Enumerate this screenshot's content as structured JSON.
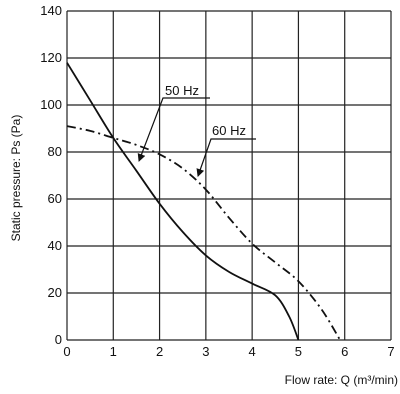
{
  "chart_data": {
    "type": "line",
    "xlabel": "Flow rate: Q (m³/min)",
    "ylabel": "Static pressure: Ps (Pa)",
    "xlim": [
      0,
      7
    ],
    "ylim": [
      0,
      140
    ],
    "x_ticks": [
      "0",
      "1",
      "2",
      "3",
      "4",
      "5",
      "6",
      "7"
    ],
    "y_ticks": [
      "0",
      "20",
      "40",
      "60",
      "80",
      "100",
      "120",
      "140"
    ],
    "grid": true,
    "series": [
      {
        "name": "50 Hz",
        "line_style": "solid",
        "points": [
          [
            0,
            118
          ],
          [
            0.5,
            102
          ],
          [
            1,
            86
          ],
          [
            1.5,
            72
          ],
          [
            2,
            58
          ],
          [
            2.5,
            46
          ],
          [
            3,
            36
          ],
          [
            3.5,
            29
          ],
          [
            4,
            24
          ],
          [
            4.5,
            19
          ],
          [
            4.8,
            10
          ],
          [
            5,
            0
          ]
        ]
      },
      {
        "name": "60 Hz",
        "line_style": "dash-dot",
        "points": [
          [
            0,
            91
          ],
          [
            0.5,
            89
          ],
          [
            1,
            86
          ],
          [
            1.5,
            83
          ],
          [
            2,
            79
          ],
          [
            2.5,
            73
          ],
          [
            3,
            64
          ],
          [
            3.5,
            52
          ],
          [
            4,
            41
          ],
          [
            4.5,
            33
          ],
          [
            5,
            25
          ],
          [
            5.5,
            13
          ],
          [
            5.9,
            0
          ]
        ]
      }
    ],
    "annotations": [
      "50 Hz",
      "60 Hz"
    ]
  }
}
